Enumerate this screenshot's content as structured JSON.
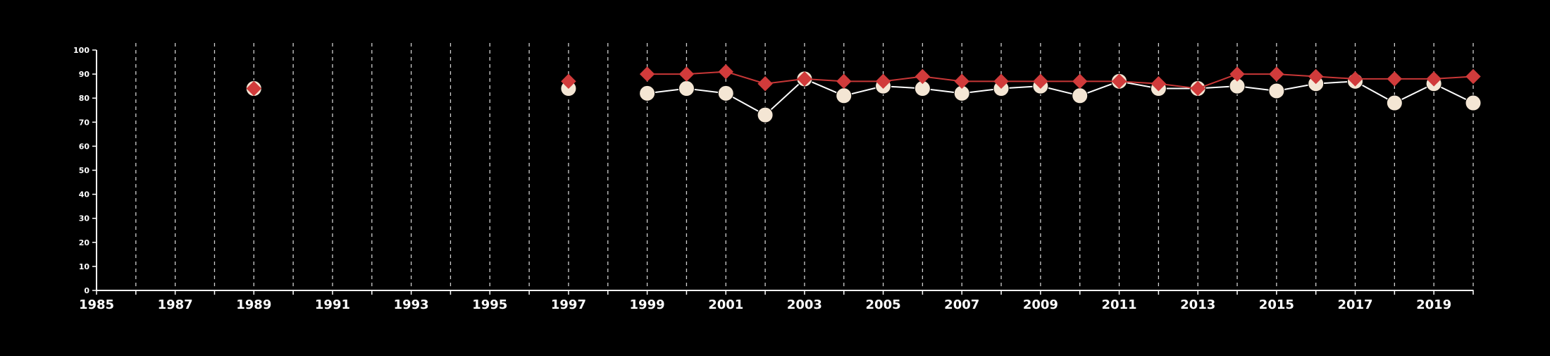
{
  "chart_data": {
    "type": "line",
    "title": "",
    "xlabel": "",
    "ylabel": "",
    "xlim": [
      1985,
      2020
    ],
    "ylim": [
      0,
      100
    ],
    "x_ticks": [
      1985,
      1987,
      1989,
      1991,
      1993,
      1995,
      1997,
      1999,
      2001,
      2003,
      2005,
      2007,
      2009,
      2011,
      2013,
      2015,
      2017,
      2019
    ],
    "x_tick_labels": [
      "1985",
      "1987",
      "1989",
      "1991",
      "1993",
      "1995",
      "1997",
      "1999",
      "2001",
      "2003",
      "2005",
      "2007",
      "2009",
      "2011",
      "2013",
      "2015",
      "2017",
      "2019"
    ],
    "y_ticks": [
      0,
      10,
      20,
      30,
      40,
      50,
      60,
      70,
      80,
      90,
      100
    ],
    "y_tick_labels": [
      "0",
      "10",
      "20",
      "30",
      "40",
      "50",
      "60",
      "70",
      "80",
      "90",
      "100"
    ],
    "grid": "vertical dashed lines at every year",
    "legend": "none",
    "background_color": "#000000",
    "axis_color": "#ffffff",
    "grid_color": "#cfcfcf",
    "series": [
      {
        "marker": "diamond",
        "color": "#d13b3b",
        "line_color": "#c83737",
        "x": [
          1989,
          1997,
          1999,
          2000,
          2001,
          2002,
          2003,
          2004,
          2005,
          2006,
          2007,
          2008,
          2009,
          2010,
          2011,
          2012,
          2013,
          2014,
          2015,
          2016,
          2017,
          2018,
          2019,
          2020
        ],
        "y": [
          84,
          87,
          90,
          90,
          91,
          86,
          88,
          87,
          87,
          89,
          87,
          87,
          87,
          87,
          87,
          86,
          84,
          90,
          90,
          89,
          88,
          88,
          88,
          89
        ]
      },
      {
        "marker": "circle",
        "color": "#f4e6d4",
        "line_color": "#ffffff",
        "x": [
          1989,
          1997,
          1999,
          2000,
          2001,
          2002,
          2003,
          2004,
          2005,
          2006,
          2007,
          2008,
          2009,
          2010,
          2011,
          2012,
          2013,
          2014,
          2015,
          2016,
          2017,
          2018,
          2019,
          2020
        ],
        "y": [
          84,
          84,
          82,
          84,
          82,
          73,
          88,
          81,
          85,
          84,
          82,
          84,
          85,
          81,
          87,
          84,
          84,
          85,
          83,
          86,
          87,
          78,
          86,
          78
        ]
      }
    ]
  }
}
